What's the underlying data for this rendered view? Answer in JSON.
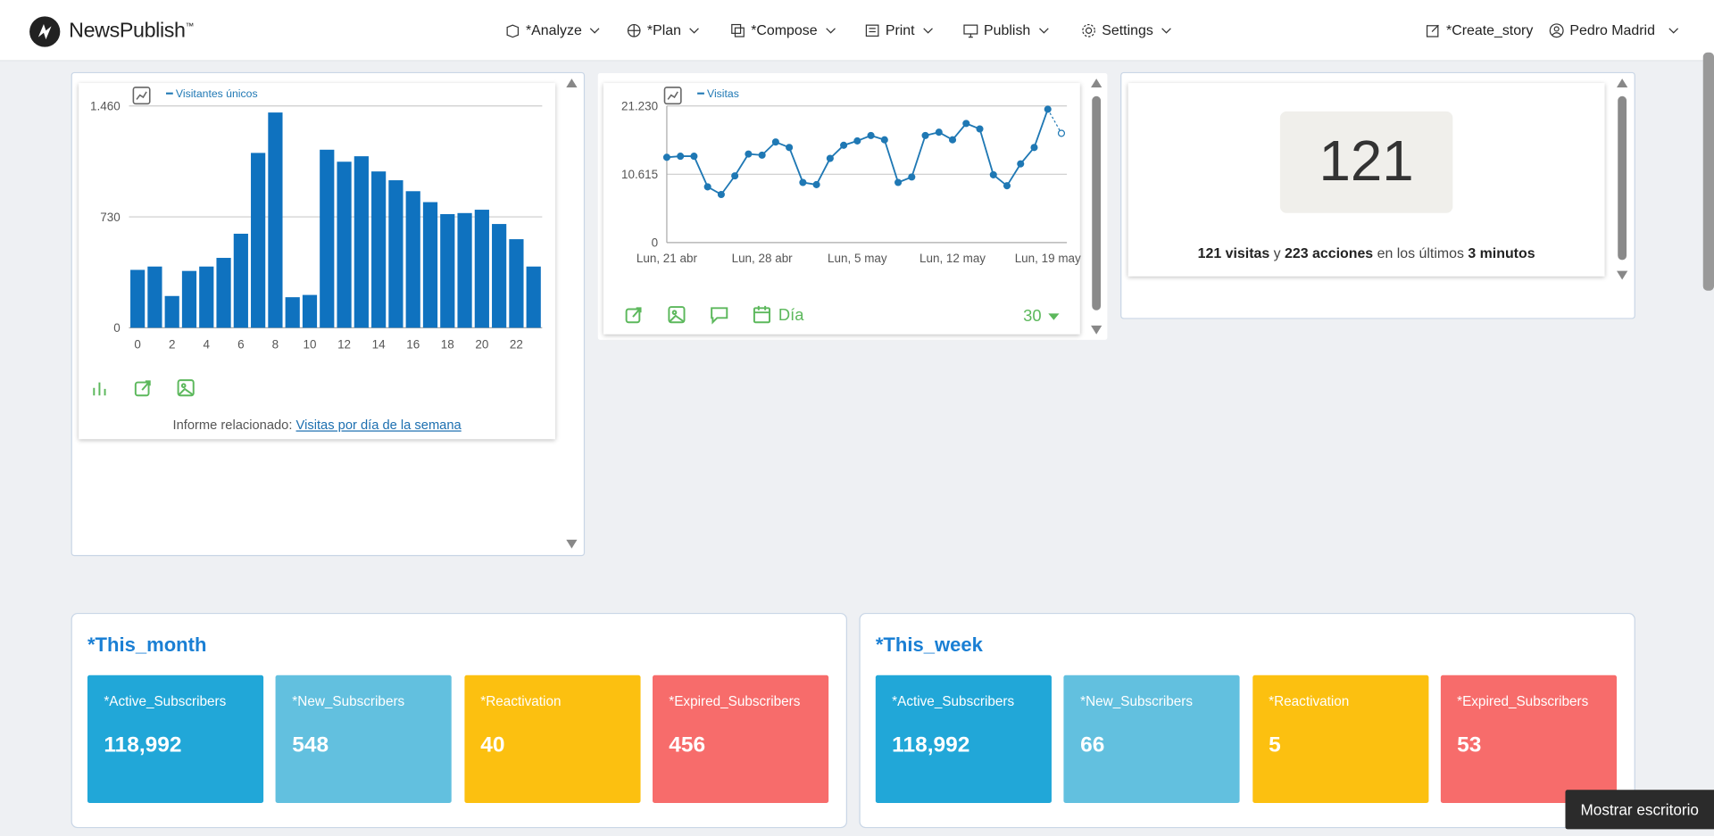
{
  "header": {
    "logo": "NewsPublish",
    "logo_mark": "™",
    "nav": [
      "*Analyze",
      "*Plan",
      "*Compose",
      "Print",
      "Publish",
      "Settings"
    ],
    "create": "*Create_story",
    "user": "Pedro Madrid"
  },
  "hourly_chart": {
    "type": "bar",
    "legend": "Visitantes únicos",
    "color": "#0f72bf",
    "categories": [
      0,
      null,
      2,
      null,
      4,
      null,
      6,
      null,
      8,
      null,
      10,
      null,
      12,
      null,
      14,
      null,
      16,
      null,
      18,
      null,
      20,
      null,
      22,
      null
    ],
    "values": [
      381,
      403,
      209,
      374,
      403,
      460,
      619,
      1151,
      1417,
      201,
      216,
      1172,
      1093,
      1129,
      1029,
      971,
      899,
      827,
      748,
      755,
      777,
      683,
      583,
      403
    ],
    "ylim": [
      0,
      1460
    ],
    "yticks": [
      0,
      730,
      {
        "value": 1460,
        "label": "1.460"
      }
    ],
    "grid": true,
    "related_label": "Informe relacionado:",
    "related_link": "Visitas por día de la semana"
  },
  "daily_chart": {
    "type": "line",
    "legend": "Visitas",
    "color": "#1f78b4",
    "categories": [
      "Lun, 21 abr",
      null,
      null,
      null,
      null,
      null,
      null,
      "Lun, 28 abr",
      null,
      null,
      null,
      null,
      null,
      null,
      "Lun, 5 may",
      null,
      null,
      null,
      null,
      null,
      null,
      "Lun, 12 may",
      null,
      null,
      null,
      null,
      null,
      null,
      "Lun, 19 may",
      null
    ],
    "values": [
      13250,
      13420,
      13420,
      8660,
      7470,
      10360,
      13760,
      13590,
      15630,
      14780,
      9340,
      9000,
      13080,
      15120,
      15800,
      16640,
      15970,
      9340,
      10190,
      16640,
      17150,
      15970,
      18510,
      17660,
      10530,
      8830,
      12230,
      14780,
      20720,
      16980
    ],
    "ylim": [
      0,
      21230
    ],
    "yticks": [
      0,
      {
        "value": 10615,
        "label": "10.615"
      },
      {
        "value": 21230,
        "label": "21.230"
      }
    ],
    "grid": true,
    "period": "Día",
    "range": "30"
  },
  "live": {
    "count": "121",
    "summary": [
      "121 visitas",
      "y",
      "223 acciones",
      "en los últimos",
      "3 minutos"
    ]
  },
  "this_month": {
    "title": "*This_month",
    "cards": [
      {
        "label": "*Active_Subscribers",
        "value": "118,992"
      },
      {
        "label": "*New_Subscribers",
        "value": "548"
      },
      {
        "label": "*Reactivation",
        "value": "40"
      },
      {
        "label": "*Expired_Subscribers",
        "value": "456"
      }
    ]
  },
  "this_week": {
    "title": "*This_week",
    "cards": [
      {
        "label": "*Active_Subscribers",
        "value": "118,992"
      },
      {
        "label": "*New_Subscribers",
        "value": "66"
      },
      {
        "label": "*Reactivation",
        "value": "5"
      },
      {
        "label": "*Expired_Subscribers",
        "value": "53"
      }
    ]
  },
  "tooltip": "Mostrar escritorio"
}
